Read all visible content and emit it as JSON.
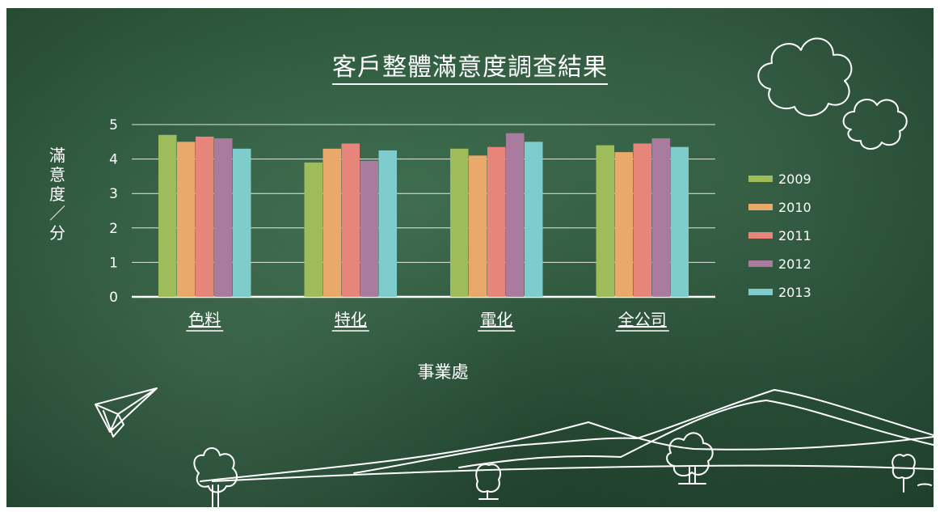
{
  "chart_data": {
    "type": "bar",
    "title": "客戶整體滿意度調查結果",
    "xlabel": "事業處",
    "ylabel": "滿意度／分",
    "categories": [
      "色料",
      "特化",
      "電化",
      "全公司"
    ],
    "ylim": [
      0,
      5
    ],
    "yticks": [
      "0",
      "1",
      "2",
      "3",
      "4",
      "5"
    ],
    "grid": true,
    "legend_position": "right",
    "series": [
      {
        "name": "2009",
        "color": "#9fbc5a",
        "values": [
          4.7,
          3.9,
          4.3,
          4.4
        ]
      },
      {
        "name": "2010",
        "color": "#e8a96a",
        "values": [
          4.5,
          4.3,
          4.1,
          4.2
        ]
      },
      {
        "name": "2011",
        "color": "#e8857b",
        "values": [
          4.65,
          4.45,
          4.35,
          4.45
        ]
      },
      {
        "name": "2012",
        "color": "#a97c9f",
        "values": [
          4.6,
          3.95,
          4.75,
          4.6
        ]
      },
      {
        "name": "2013",
        "color": "#7ecccc",
        "values": [
          4.3,
          4.25,
          4.5,
          4.35
        ]
      }
    ]
  },
  "colors": {
    "board": "#2f5a3e",
    "chalk": "#ffffff"
  }
}
